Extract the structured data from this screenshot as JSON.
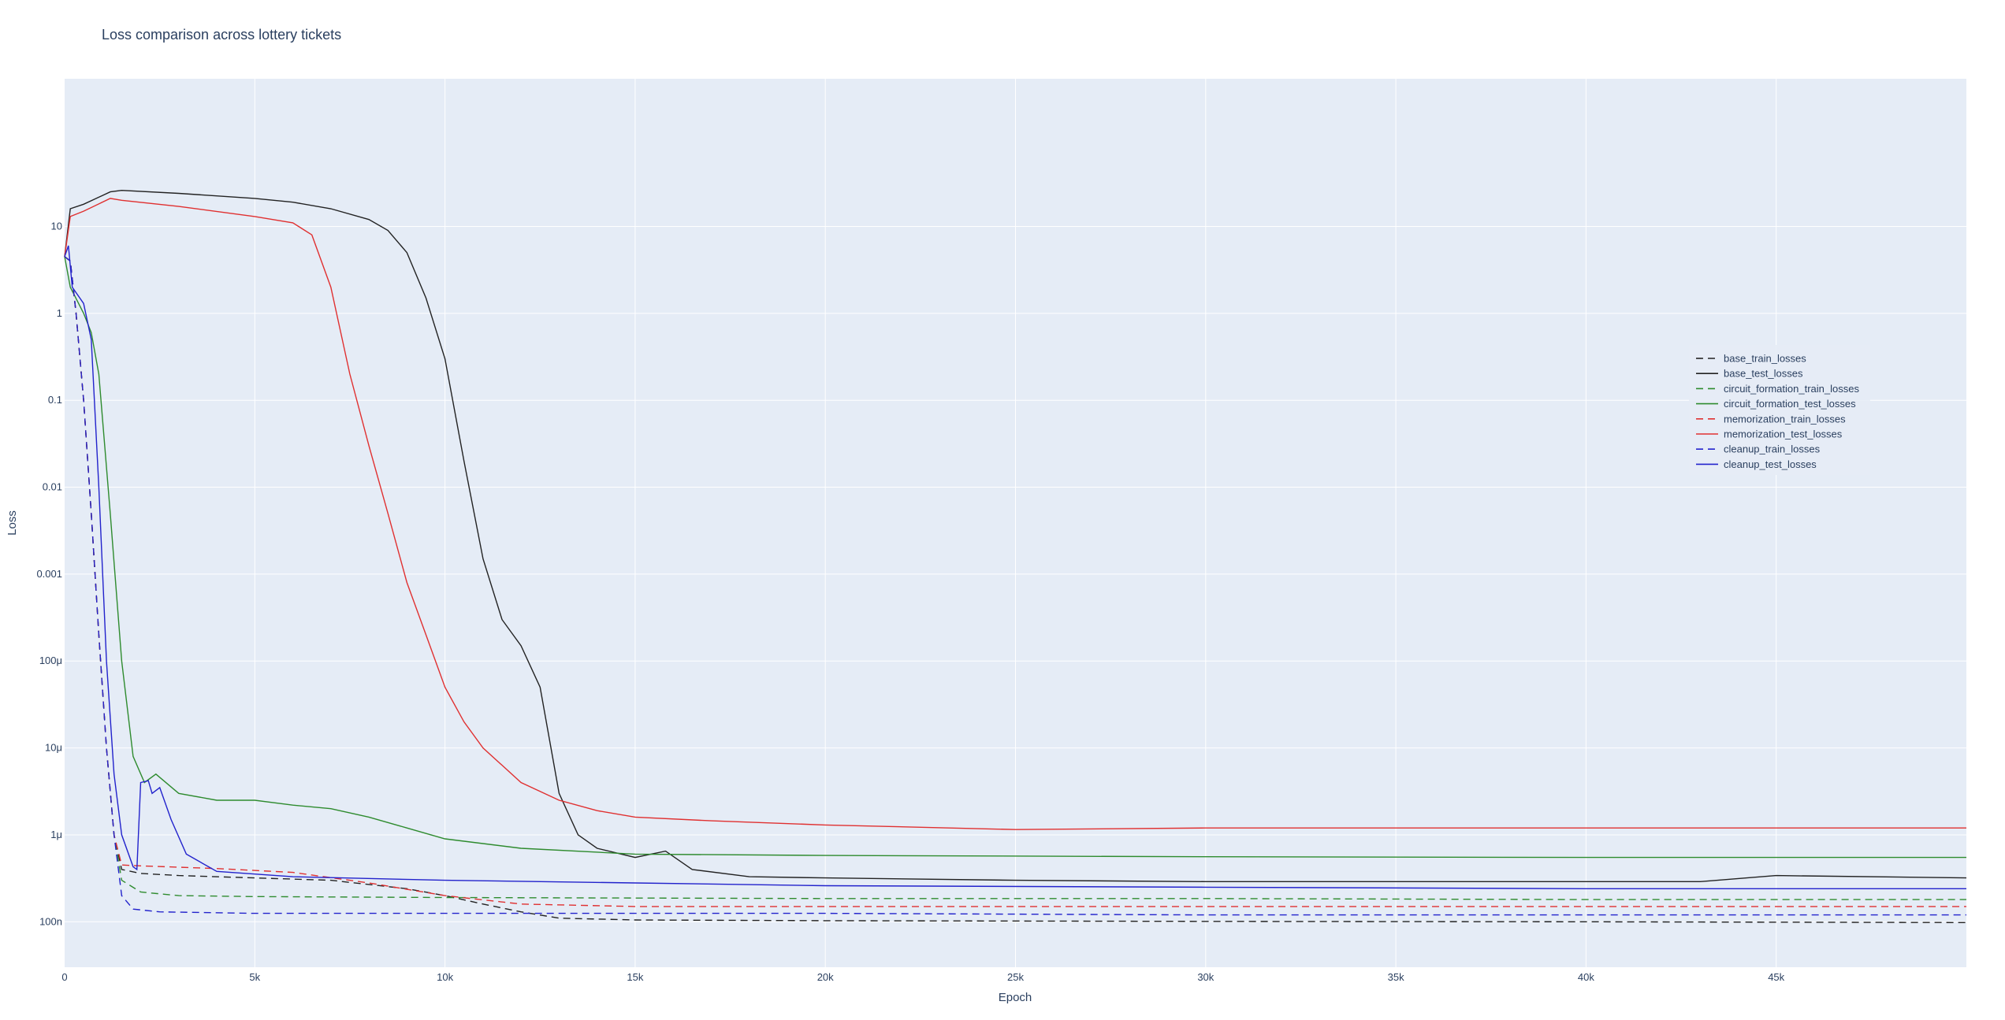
{
  "chart_data": {
    "type": "line",
    "title": "Loss comparison across lottery tickets",
    "xlabel": "Epoch",
    "ylabel": "Loss",
    "xlim": [
      0,
      50000
    ],
    "ylim_log": [
      3e-08,
      500
    ],
    "y_scale": "log",
    "grid": true,
    "legend_position": "right",
    "colors": {
      "plot_bg": "#e5ecf6",
      "grid": "#ffffff",
      "text": "#2a3f5f"
    },
    "x_ticks": [
      {
        "value": 0,
        "label": "0"
      },
      {
        "value": 5000,
        "label": "5k"
      },
      {
        "value": 10000,
        "label": "10k"
      },
      {
        "value": 15000,
        "label": "15k"
      },
      {
        "value": 20000,
        "label": "20k"
      },
      {
        "value": 25000,
        "label": "25k"
      },
      {
        "value": 30000,
        "label": "30k"
      },
      {
        "value": 35000,
        "label": "35k"
      },
      {
        "value": 40000,
        "label": "40k"
      },
      {
        "value": 45000,
        "label": "45k"
      }
    ],
    "y_ticks": [
      {
        "value": 1e-07,
        "label": "100n"
      },
      {
        "value": 1e-06,
        "label": "1μ"
      },
      {
        "value": 1e-05,
        "label": "10μ"
      },
      {
        "value": 0.0001,
        "label": "100μ"
      },
      {
        "value": 0.001,
        "label": "0.001"
      },
      {
        "value": 0.01,
        "label": "0.01"
      },
      {
        "value": 0.1,
        "label": "0.1"
      },
      {
        "value": 1,
        "label": "1"
      },
      {
        "value": 10,
        "label": "10"
      }
    ],
    "series": [
      {
        "name": "base_train_losses",
        "color": "#222222",
        "dash": true,
        "points": [
          [
            0,
            4.5
          ],
          [
            150,
            4
          ],
          [
            300,
            1
          ],
          [
            500,
            0.1
          ],
          [
            700,
            0.005
          ],
          [
            900,
            0.0002
          ],
          [
            1100,
            1e-05
          ],
          [
            1300,
            1e-06
          ],
          [
            1500,
            4e-07
          ],
          [
            2000,
            3.6e-07
          ],
          [
            3000,
            3.4e-07
          ],
          [
            5000,
            3.2e-07
          ],
          [
            7000,
            3e-07
          ],
          [
            9000,
            2.4e-07
          ],
          [
            10000,
            2e-07
          ],
          [
            11000,
            1.6e-07
          ],
          [
            12000,
            1.3e-07
          ],
          [
            13000,
            1.1e-07
          ],
          [
            15000,
            1.05e-07
          ],
          [
            20000,
            1.03e-07
          ],
          [
            30000,
            1.01e-07
          ],
          [
            40000,
            1e-07
          ],
          [
            50000,
            9.8e-08
          ]
        ]
      },
      {
        "name": "base_test_losses",
        "color": "#222222",
        "dash": false,
        "points": [
          [
            0,
            4.5
          ],
          [
            150,
            16
          ],
          [
            500,
            18
          ],
          [
            1200,
            25
          ],
          [
            1500,
            26
          ],
          [
            3000,
            24
          ],
          [
            5000,
            21
          ],
          [
            6000,
            19
          ],
          [
            7000,
            16
          ],
          [
            8000,
            12
          ],
          [
            8500,
            9
          ],
          [
            9000,
            5
          ],
          [
            9500,
            1.5
          ],
          [
            10000,
            0.3
          ],
          [
            10500,
            0.02
          ],
          [
            11000,
            0.0015
          ],
          [
            11500,
            0.0003
          ],
          [
            12000,
            0.00015
          ],
          [
            12500,
            5e-05
          ],
          [
            13000,
            3e-06
          ],
          [
            13500,
            1e-06
          ],
          [
            14000,
            7e-07
          ],
          [
            15000,
            5.5e-07
          ],
          [
            15800,
            6.5e-07
          ],
          [
            16500,
            4e-07
          ],
          [
            18000,
            3.3e-07
          ],
          [
            20000,
            3.2e-07
          ],
          [
            25000,
            3e-07
          ],
          [
            30000,
            2.9e-07
          ],
          [
            35000,
            2.9e-07
          ],
          [
            40000,
            2.9e-07
          ],
          [
            43000,
            2.9e-07
          ],
          [
            45000,
            3.4e-07
          ],
          [
            50000,
            3.2e-07
          ]
        ]
      },
      {
        "name": "circuit_formation_train_losses",
        "color": "#2e8b2e",
        "dash": true,
        "points": [
          [
            0,
            4.5
          ],
          [
            150,
            4
          ],
          [
            300,
            1
          ],
          [
            500,
            0.1
          ],
          [
            700,
            0.005
          ],
          [
            900,
            0.0002
          ],
          [
            1100,
            1e-05
          ],
          [
            1300,
            1e-06
          ],
          [
            1500,
            3e-07
          ],
          [
            2000,
            2.2e-07
          ],
          [
            3000,
            2e-07
          ],
          [
            5000,
            1.95e-07
          ],
          [
            10000,
            1.9e-07
          ],
          [
            20000,
            1.85e-07
          ],
          [
            30000,
            1.85e-07
          ],
          [
            40000,
            1.8e-07
          ],
          [
            50000,
            1.8e-07
          ]
        ]
      },
      {
        "name": "circuit_formation_test_losses",
        "color": "#2e8b2e",
        "dash": false,
        "points": [
          [
            0,
            4.5
          ],
          [
            150,
            2
          ],
          [
            500,
            1
          ],
          [
            700,
            0.6
          ],
          [
            900,
            0.2
          ],
          [
            1200,
            0.005
          ],
          [
            1500,
            0.0001
          ],
          [
            1800,
            8e-06
          ],
          [
            2100,
            4e-06
          ],
          [
            2400,
            5e-06
          ],
          [
            3000,
            3e-06
          ],
          [
            4000,
            2.5e-06
          ],
          [
            5000,
            2.5e-06
          ],
          [
            6000,
            2.2e-06
          ],
          [
            7000,
            2e-06
          ],
          [
            8000,
            1.6e-06
          ],
          [
            9000,
            1.2e-06
          ],
          [
            10000,
            9e-07
          ],
          [
            12000,
            7e-07
          ],
          [
            15000,
            6e-07
          ],
          [
            20000,
            5.8e-07
          ],
          [
            30000,
            5.6e-07
          ],
          [
            40000,
            5.5e-07
          ],
          [
            50000,
            5.5e-07
          ]
        ]
      },
      {
        "name": "memorization_train_losses",
        "color": "#e03030",
        "dash": true,
        "points": [
          [
            0,
            4.5
          ],
          [
            150,
            4
          ],
          [
            300,
            1
          ],
          [
            500,
            0.1
          ],
          [
            700,
            0.005
          ],
          [
            900,
            0.0002
          ],
          [
            1100,
            1e-05
          ],
          [
            1300,
            1e-06
          ],
          [
            1500,
            4.5e-07
          ],
          [
            2000,
            4.4e-07
          ],
          [
            4000,
            4.1e-07
          ],
          [
            6000,
            3.7e-07
          ],
          [
            8000,
            2.8e-07
          ],
          [
            10000,
            2e-07
          ],
          [
            12000,
            1.6e-07
          ],
          [
            15000,
            1.5e-07
          ],
          [
            20000,
            1.5e-07
          ],
          [
            30000,
            1.5e-07
          ],
          [
            40000,
            1.5e-07
          ],
          [
            50000,
            1.5e-07
          ]
        ]
      },
      {
        "name": "memorization_test_losses",
        "color": "#e03030",
        "dash": false,
        "points": [
          [
            0,
            4.5
          ],
          [
            150,
            13
          ],
          [
            500,
            15
          ],
          [
            1200,
            21
          ],
          [
            1500,
            20
          ],
          [
            3000,
            17
          ],
          [
            5000,
            13
          ],
          [
            6000,
            11
          ],
          [
            6500,
            8
          ],
          [
            7000,
            2
          ],
          [
            7500,
            0.2
          ],
          [
            8000,
            0.03
          ],
          [
            8500,
            0.005
          ],
          [
            9000,
            0.0008
          ],
          [
            9500,
            0.0002
          ],
          [
            10000,
            5e-05
          ],
          [
            10500,
            2e-05
          ],
          [
            11000,
            1e-05
          ],
          [
            12000,
            4e-06
          ],
          [
            13000,
            2.5e-06
          ],
          [
            14000,
            1.9e-06
          ],
          [
            15000,
            1.6e-06
          ],
          [
            17000,
            1.45e-06
          ],
          [
            20000,
            1.3e-06
          ],
          [
            25000,
            1.15e-06
          ],
          [
            30000,
            1.2e-06
          ],
          [
            35000,
            1.2e-06
          ],
          [
            40000,
            1.2e-06
          ],
          [
            45000,
            1.2e-06
          ],
          [
            50000,
            1.2e-06
          ]
        ]
      },
      {
        "name": "cleanup_train_losses",
        "color": "#2222cc",
        "dash": true,
        "points": [
          [
            0,
            4.5
          ],
          [
            150,
            4
          ],
          [
            300,
            1
          ],
          [
            500,
            0.1
          ],
          [
            700,
            0.005
          ],
          [
            900,
            0.0002
          ],
          [
            1100,
            1e-05
          ],
          [
            1300,
            1e-06
          ],
          [
            1500,
            2e-07
          ],
          [
            1800,
            1.4e-07
          ],
          [
            2500,
            1.3e-07
          ],
          [
            5000,
            1.25e-07
          ],
          [
            10000,
            1.25e-07
          ],
          [
            20000,
            1.25e-07
          ],
          [
            30000,
            1.2e-07
          ],
          [
            40000,
            1.2e-07
          ],
          [
            50000,
            1.2e-07
          ]
        ]
      },
      {
        "name": "cleanup_test_losses",
        "color": "#2222cc",
        "dash": false,
        "points": [
          [
            0,
            4.5
          ],
          [
            100,
            6
          ],
          [
            200,
            2
          ],
          [
            500,
            1.3
          ],
          [
            700,
            0.5
          ],
          [
            900,
            0.01
          ],
          [
            1100,
            0.0001
          ],
          [
            1300,
            5e-06
          ],
          [
            1500,
            1e-06
          ],
          [
            1800,
            4.3e-07
          ],
          [
            1900,
            4e-07
          ],
          [
            2000,
            4e-06
          ],
          [
            2200,
            4.2e-06
          ],
          [
            2300,
            3e-06
          ],
          [
            2500,
            3.5e-06
          ],
          [
            2800,
            1.5e-06
          ],
          [
            3200,
            6e-07
          ],
          [
            4000,
            3.8e-07
          ],
          [
            6000,
            3.3e-07
          ],
          [
            10000,
            3e-07
          ],
          [
            15000,
            2.8e-07
          ],
          [
            20000,
            2.6e-07
          ],
          [
            30000,
            2.5e-07
          ],
          [
            40000,
            2.4e-07
          ],
          [
            50000,
            2.4e-07
          ]
        ]
      }
    ]
  }
}
